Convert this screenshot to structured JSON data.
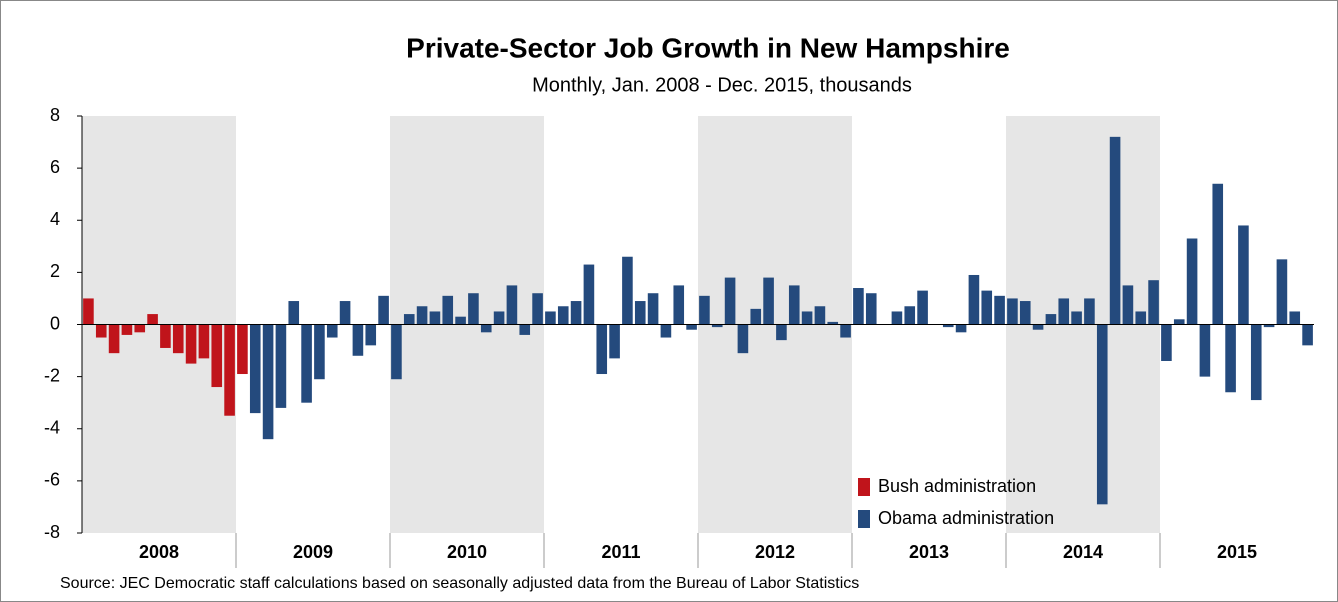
{
  "chart_data": {
    "type": "bar",
    "title": "Private-Sector Job Growth in New Hampshire",
    "subtitle": "Monthly, Jan. 2008 - Dec. 2015, thousands",
    "source": "Source: JEC Democratic staff calculations based on seasonally adjusted data from the Bureau of Labor Statistics",
    "years": [
      "2008",
      "2009",
      "2010",
      "2011",
      "2012",
      "2013",
      "2014",
      "2015"
    ],
    "ylim": [
      -8,
      8
    ],
    "yticks": [
      -8,
      -6,
      -4,
      -2,
      0,
      2,
      4,
      6,
      8
    ],
    "legend": "bottom-right",
    "series": [
      {
        "name": "Bush administration",
        "color": "#c0141b",
        "values": [
          1.0,
          -0.5,
          -1.1,
          -0.4,
          -0.3,
          0.4,
          -0.9,
          -1.1,
          -1.5,
          -1.3,
          -2.4,
          -3.5,
          -1.9,
          null,
          null,
          null,
          null,
          null,
          null,
          null,
          null,
          null,
          null,
          null,
          null,
          null,
          null,
          null,
          null,
          null,
          null,
          null,
          null,
          null,
          null,
          null,
          null,
          null,
          null,
          null,
          null,
          null,
          null,
          null,
          null,
          null,
          null,
          null,
          null,
          null,
          null,
          null,
          null,
          null,
          null,
          null,
          null,
          null,
          null,
          null,
          null,
          null,
          null,
          null,
          null,
          null,
          null,
          null,
          null,
          null,
          null,
          null,
          null,
          null,
          null,
          null,
          null,
          null,
          null,
          null,
          null,
          null,
          null,
          null,
          null,
          null,
          null,
          null,
          null,
          null,
          null,
          null,
          null,
          null,
          null,
          null
        ]
      },
      {
        "name": "Obama administration",
        "color": "#244a7d",
        "values": [
          null,
          null,
          null,
          null,
          null,
          null,
          null,
          null,
          null,
          null,
          null,
          null,
          null,
          -3.4,
          -4.4,
          -3.2,
          0.9,
          -3.0,
          -2.1,
          -0.5,
          0.9,
          -1.2,
          -0.8,
          1.1,
          -2.1,
          0.4,
          0.7,
          0.5,
          1.1,
          0.3,
          1.2,
          -0.3,
          0.5,
          1.5,
          -0.4,
          1.2,
          0.5,
          0.7,
          0.9,
          2.3,
          -1.9,
          -1.3,
          2.6,
          0.9,
          1.2,
          -0.5,
          1.5,
          -0.2,
          1.1,
          -0.1,
          1.8,
          -1.1,
          0.6,
          1.8,
          -0.6,
          1.5,
          0.5,
          0.7,
          0.1,
          -0.5,
          1.4,
          1.2,
          0,
          0.5,
          0.7,
          1.3,
          0,
          -0.1,
          -0.3,
          1.9,
          1.3,
          1.1,
          1.0,
          0.9,
          -0.2,
          0.4,
          1.0,
          0.5,
          1.0,
          -6.9,
          7.2,
          1.5,
          0.5,
          1.7,
          -1.4,
          0.2,
          3.3,
          -2.0,
          5.4,
          -2.6,
          3.8,
          -2.9,
          -0.1,
          2.5,
          0.5,
          -0.8
        ]
      }
    ]
  }
}
